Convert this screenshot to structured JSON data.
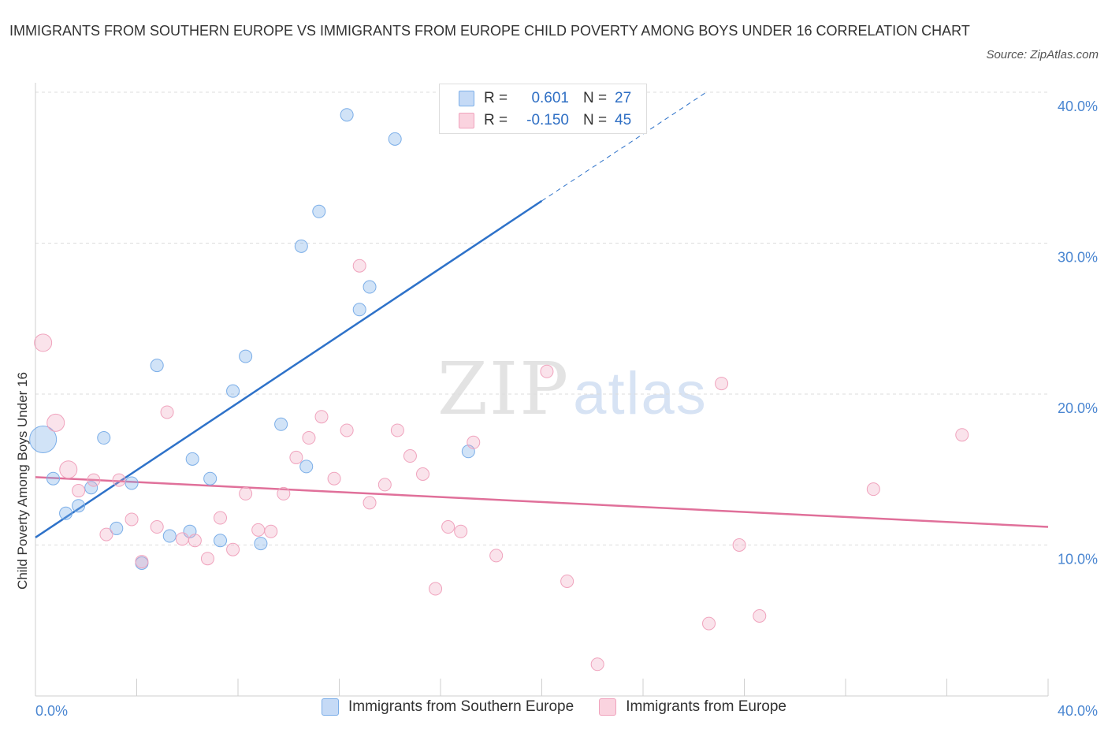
{
  "title": "IMMIGRANTS FROM SOUTHERN EUROPE VS IMMIGRANTS FROM EUROPE CHILD POVERTY AMONG BOYS UNDER 16 CORRELATION CHART",
  "source": "Source: ZipAtlas.com",
  "watermark": {
    "zip": "ZIP",
    "atlas": "atlas"
  },
  "legend": {
    "r_label": "R =",
    "n_label": "N =",
    "rows": [
      {
        "r": "0.601",
        "n": "27"
      },
      {
        "r": "-0.150",
        "n": "45"
      }
    ]
  },
  "chart_data": {
    "type": "scatter",
    "ylabel": "Child Poverty Among Boys Under 16",
    "xlabel": "",
    "xlim": [
      0,
      40
    ],
    "ylim": [
      0,
      40
    ],
    "x_tick_labels": [
      "0.0%",
      "40.0%"
    ],
    "y_ticks": [
      10,
      20,
      30,
      40
    ],
    "y_tick_labels": [
      "10.0%",
      "20.0%",
      "30.0%",
      "40.0%"
    ],
    "grid": true,
    "colors": {
      "blue": "#7baee8",
      "pink": "#f0a3bd",
      "blue_line": "#2e72c9",
      "pink_line": "#e0709a",
      "tick_text": "#4a86d1"
    },
    "series": [
      {
        "name": "Immigrants from Southern Europe",
        "color": "#7baee8",
        "trend": {
          "x0": 0,
          "y0": 10.5,
          "x1": 20,
          "y1": 32.8,
          "dash_to_x": 26.5,
          "dash_to_y": 40
        },
        "points": [
          [
            0.3,
            17.0
          ],
          [
            0.7,
            14.4
          ],
          [
            1.2,
            12.1
          ],
          [
            1.7,
            12.6
          ],
          [
            2.2,
            13.8
          ],
          [
            2.7,
            17.1
          ],
          [
            3.2,
            11.1
          ],
          [
            3.8,
            14.1
          ],
          [
            4.2,
            8.8
          ],
          [
            4.8,
            21.9
          ],
          [
            5.3,
            10.6
          ],
          [
            6.1,
            10.9
          ],
          [
            6.2,
            15.7
          ],
          [
            6.9,
            14.4
          ],
          [
            7.3,
            10.3
          ],
          [
            7.8,
            20.2
          ],
          [
            8.3,
            22.5
          ],
          [
            8.9,
            10.1
          ],
          [
            9.7,
            18.0
          ],
          [
            10.5,
            29.8
          ],
          [
            10.7,
            15.2
          ],
          [
            11.2,
            32.1
          ],
          [
            12.3,
            38.5
          ],
          [
            12.8,
            25.6
          ],
          [
            13.2,
            27.1
          ],
          [
            14.2,
            36.9
          ],
          [
            17.1,
            16.2
          ]
        ]
      },
      {
        "name": "Immigrants from Europe",
        "color": "#f0a3bd",
        "trend": {
          "x0": 0,
          "y0": 14.5,
          "x1": 40,
          "y1": 11.2
        },
        "points": [
          [
            0.3,
            23.4
          ],
          [
            0.8,
            18.1
          ],
          [
            1.3,
            15.0
          ],
          [
            1.7,
            13.6
          ],
          [
            2.3,
            14.3
          ],
          [
            2.8,
            10.7
          ],
          [
            3.3,
            14.3
          ],
          [
            3.8,
            11.7
          ],
          [
            4.2,
            8.9
          ],
          [
            4.8,
            11.2
          ],
          [
            5.2,
            18.8
          ],
          [
            5.8,
            10.4
          ],
          [
            6.3,
            10.3
          ],
          [
            6.8,
            9.1
          ],
          [
            7.3,
            11.8
          ],
          [
            7.8,
            9.7
          ],
          [
            8.3,
            13.4
          ],
          [
            8.8,
            11.0
          ],
          [
            9.3,
            10.9
          ],
          [
            9.8,
            13.4
          ],
          [
            10.3,
            15.8
          ],
          [
            10.8,
            17.1
          ],
          [
            11.3,
            18.5
          ],
          [
            11.8,
            14.4
          ],
          [
            12.3,
            17.6
          ],
          [
            12.8,
            28.5
          ],
          [
            13.2,
            12.8
          ],
          [
            13.8,
            14.0
          ],
          [
            14.3,
            17.6
          ],
          [
            14.8,
            15.9
          ],
          [
            15.3,
            14.7
          ],
          [
            15.8,
            7.1
          ],
          [
            16.3,
            11.2
          ],
          [
            16.8,
            10.9
          ],
          [
            17.3,
            16.8
          ],
          [
            18.2,
            9.3
          ],
          [
            20.2,
            21.5
          ],
          [
            21.0,
            7.6
          ],
          [
            22.2,
            2.1
          ],
          [
            26.6,
            4.8
          ],
          [
            27.1,
            20.7
          ],
          [
            27.8,
            10.0
          ],
          [
            28.6,
            5.3
          ],
          [
            33.1,
            13.7
          ],
          [
            36.6,
            17.3
          ]
        ]
      }
    ]
  }
}
